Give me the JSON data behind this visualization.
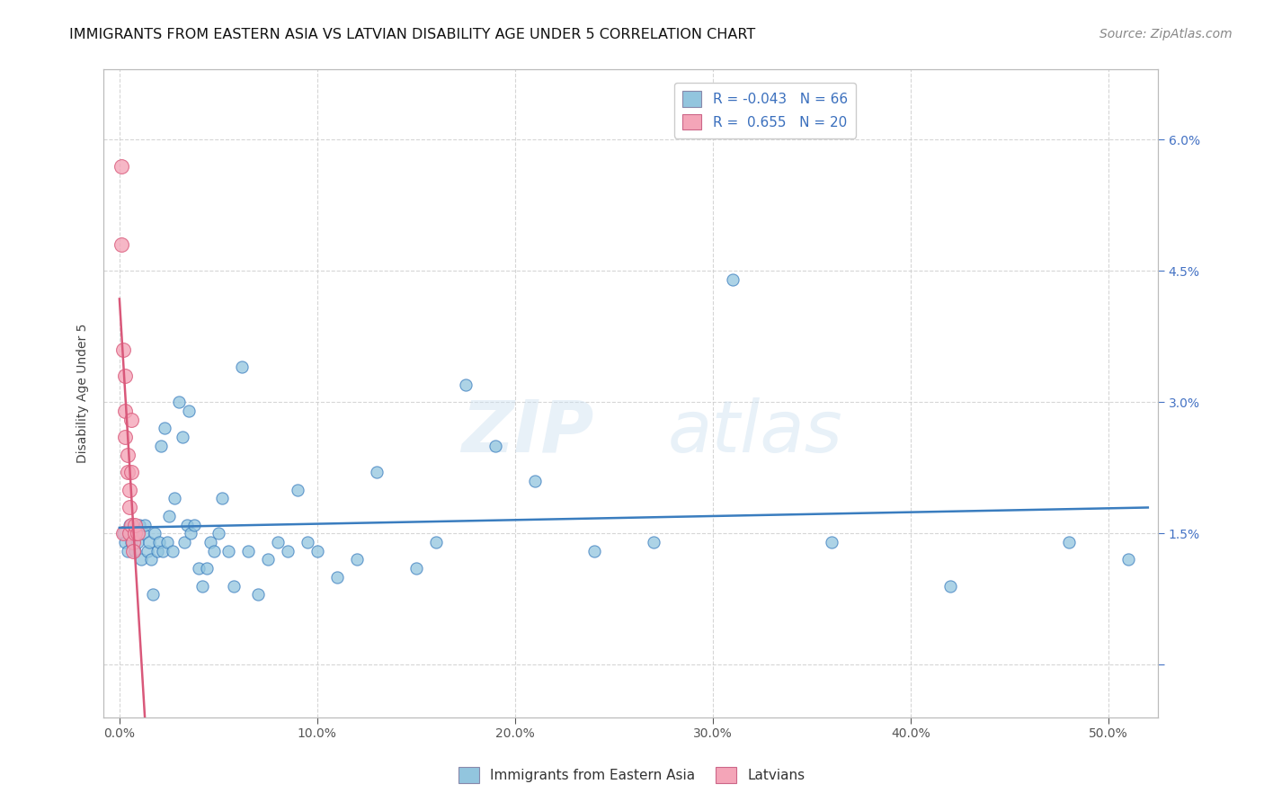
{
  "title": "IMMIGRANTS FROM EASTERN ASIA VS LATVIAN DISABILITY AGE UNDER 5 CORRELATION CHART",
  "source": "Source: ZipAtlas.com",
  "ylabel": "Disability Age Under 5",
  "x_ticks": [
    0.0,
    0.1,
    0.2,
    0.3,
    0.4,
    0.5
  ],
  "x_tick_labels": [
    "0.0%",
    "10.0%",
    "20.0%",
    "30.0%",
    "40.0%",
    "50.0%"
  ],
  "y_ticks": [
    0.0,
    0.015,
    0.03,
    0.045,
    0.06
  ],
  "y_tick_labels_right": [
    "",
    "1.5%",
    "3.0%",
    "4.5%",
    "6.0%"
  ],
  "xlim": [
    -0.008,
    0.525
  ],
  "ylim": [
    -0.006,
    0.068
  ],
  "blue_R": "-0.043",
  "blue_N": "66",
  "pink_R": "0.655",
  "pink_N": "20",
  "blue_color": "#92c5de",
  "pink_color": "#f4a5b8",
  "blue_line_color": "#3a7dbf",
  "pink_line_color": "#d9587a",
  "watermark_zip": "ZIP",
  "watermark_atlas": "atlas",
  "blue_scatter_x": [
    0.002,
    0.003,
    0.004,
    0.005,
    0.006,
    0.007,
    0.008,
    0.009,
    0.01,
    0.011,
    0.012,
    0.013,
    0.014,
    0.015,
    0.016,
    0.017,
    0.018,
    0.019,
    0.02,
    0.021,
    0.022,
    0.023,
    0.024,
    0.025,
    0.027,
    0.028,
    0.03,
    0.032,
    0.033,
    0.034,
    0.035,
    0.036,
    0.038,
    0.04,
    0.042,
    0.044,
    0.046,
    0.048,
    0.05,
    0.052,
    0.055,
    0.058,
    0.062,
    0.065,
    0.07,
    0.075,
    0.08,
    0.085,
    0.09,
    0.095,
    0.1,
    0.11,
    0.12,
    0.13,
    0.15,
    0.16,
    0.175,
    0.19,
    0.21,
    0.24,
    0.27,
    0.31,
    0.36,
    0.42,
    0.48,
    0.51
  ],
  "blue_scatter_y": [
    0.015,
    0.014,
    0.013,
    0.016,
    0.014,
    0.015,
    0.013,
    0.014,
    0.016,
    0.012,
    0.015,
    0.016,
    0.013,
    0.014,
    0.012,
    0.008,
    0.015,
    0.013,
    0.014,
    0.025,
    0.013,
    0.027,
    0.014,
    0.017,
    0.013,
    0.019,
    0.03,
    0.026,
    0.014,
    0.016,
    0.029,
    0.015,
    0.016,
    0.011,
    0.009,
    0.011,
    0.014,
    0.013,
    0.015,
    0.019,
    0.013,
    0.009,
    0.034,
    0.013,
    0.008,
    0.012,
    0.014,
    0.013,
    0.02,
    0.014,
    0.013,
    0.01,
    0.012,
    0.022,
    0.011,
    0.014,
    0.032,
    0.025,
    0.021,
    0.013,
    0.014,
    0.044,
    0.014,
    0.009,
    0.014,
    0.012
  ],
  "pink_scatter_x": [
    0.001,
    0.001,
    0.002,
    0.002,
    0.003,
    0.003,
    0.003,
    0.004,
    0.004,
    0.005,
    0.005,
    0.005,
    0.006,
    0.006,
    0.006,
    0.007,
    0.007,
    0.008,
    0.008,
    0.009
  ],
  "pink_scatter_y": [
    0.057,
    0.048,
    0.036,
    0.015,
    0.033,
    0.029,
    0.026,
    0.024,
    0.022,
    0.02,
    0.018,
    0.015,
    0.022,
    0.016,
    0.028,
    0.014,
    0.013,
    0.015,
    0.016,
    0.015
  ],
  "legend_label_blue": "Immigrants from Eastern Asia",
  "legend_label_pink": "Latvians",
  "title_fontsize": 11.5,
  "axis_label_fontsize": 10,
  "tick_fontsize": 10,
  "legend_fontsize": 11,
  "source_fontsize": 10,
  "background_color": "#ffffff",
  "grid_color": "#cccccc"
}
